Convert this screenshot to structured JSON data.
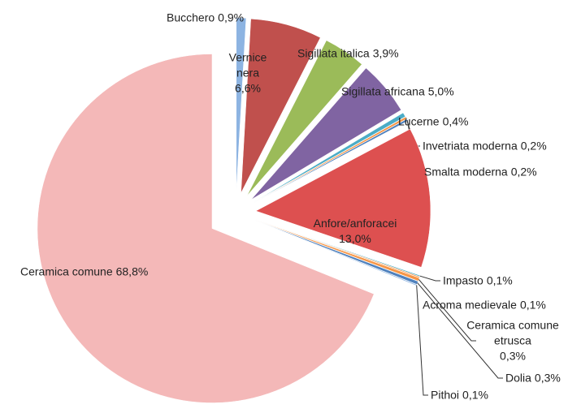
{
  "chart_data": {
    "type": "pie",
    "categories": [
      "Bucchero",
      "Vernice nera",
      "Sigillata italica",
      "Sigillata africana",
      "Lucerne",
      "Invetriata moderna",
      "Smalta moderna",
      "Anfore/anforacei",
      "Impasto",
      "Acroma medievale",
      "Ceramica comune etrusca",
      "Dolia",
      "Pithoi",
      "Ceramica comune"
    ],
    "values": [
      0.9,
      6.6,
      3.9,
      5.0,
      0.4,
      0.2,
      0.2,
      13.0,
      0.1,
      0.1,
      0.3,
      0.3,
      0.1,
      68.8
    ],
    "value_labels": [
      "0,9%",
      "6,6%",
      "3,9%",
      "5,0%",
      "0,4%",
      "0,2%",
      "0,2%",
      "13,0%",
      "0,1%",
      "0,1%",
      "0,3%",
      "0,3%",
      "0,1%",
      "68,8%"
    ],
    "colors": [
      "#8db4e2",
      "#c0504d",
      "#9bbb59",
      "#8064a2",
      "#4bacc6",
      "#f79646",
      "#4f81bd",
      "#dd5050",
      "#4bacc6",
      "#f79646",
      "#f79646",
      "#4f81bd",
      "#8db4e2",
      "#f4b8b8"
    ]
  }
}
